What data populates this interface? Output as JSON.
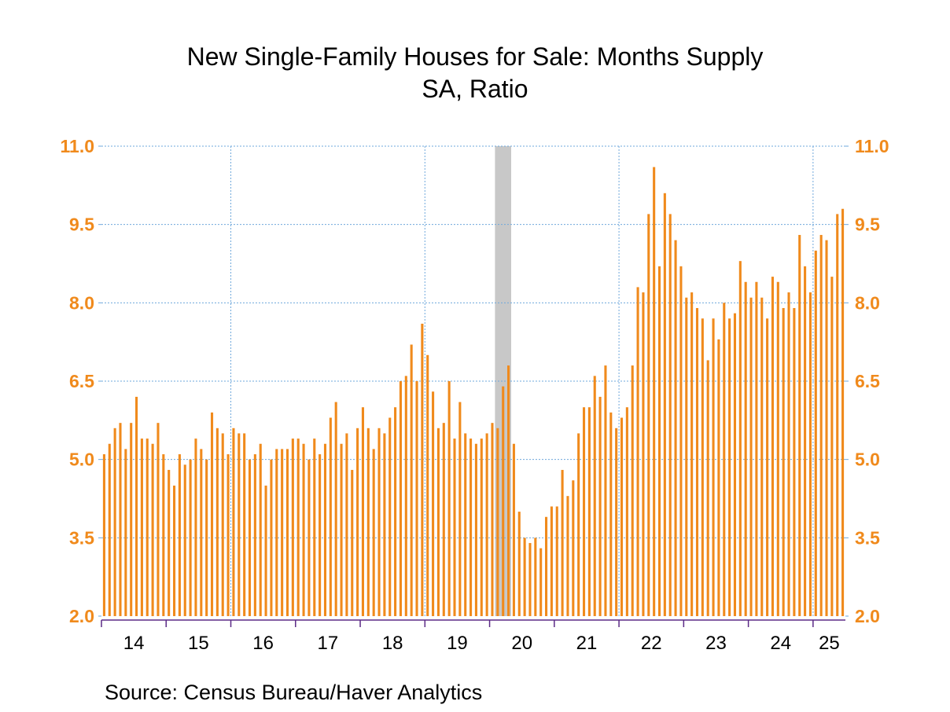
{
  "chart_data": {
    "type": "bar",
    "title": "New Single-Family Houses for Sale: Months Supply",
    "subtitle": "SA, Ratio",
    "source": "Source:  Census Bureau/Haver Analytics",
    "start": "2014-01",
    "values": [
      5.1,
      5.3,
      5.6,
      5.7,
      5.2,
      5.7,
      6.2,
      5.4,
      5.4,
      5.3,
      5.7,
      5.1,
      4.8,
      4.5,
      5.1,
      4.9,
      5.0,
      5.4,
      5.2,
      5.0,
      5.9,
      5.6,
      5.5,
      5.1,
      5.6,
      5.5,
      5.5,
      5.0,
      5.1,
      5.3,
      4.5,
      5.0,
      5.2,
      5.2,
      5.2,
      5.4,
      5.4,
      5.3,
      5.0,
      5.4,
      5.1,
      5.3,
      5.8,
      6.1,
      5.3,
      5.5,
      4.8,
      5.6,
      6.0,
      5.6,
      5.2,
      5.6,
      5.5,
      5.8,
      6.0,
      6.5,
      6.6,
      7.2,
      6.5,
      7.6,
      7.0,
      6.3,
      5.6,
      5.7,
      6.5,
      5.4,
      6.1,
      5.5,
      5.4,
      5.3,
      5.4,
      5.5,
      5.7,
      5.6,
      6.4,
      6.8,
      5.3,
      4.0,
      3.5,
      3.4,
      3.5,
      3.3,
      3.9,
      4.1,
      4.1,
      4.8,
      4.3,
      4.6,
      5.5,
      6.0,
      6.0,
      6.6,
      6.2,
      6.8,
      5.9,
      5.6,
      5.8,
      6.0,
      6.8,
      8.3,
      8.2,
      9.7,
      10.6,
      8.7,
      10.1,
      9.7,
      9.2,
      8.7,
      8.1,
      8.2,
      7.9,
      7.7,
      6.9,
      7.7,
      7.3,
      8.0,
      7.7,
      7.8,
      8.8,
      8.4,
      8.1,
      8.4,
      8.1,
      7.7,
      8.5,
      8.4,
      7.9,
      8.2,
      7.9,
      9.3,
      8.7,
      8.2,
      9.0,
      9.3,
      9.2,
      8.5,
      9.7,
      9.8
    ],
    "x_tick_labels": [
      "14",
      "15",
      "16",
      "17",
      "18",
      "19",
      "20",
      "21",
      "22",
      "23",
      "24",
      "25"
    ],
    "y_tick_labels": [
      "2.0",
      "3.5",
      "5.0",
      "6.5",
      "8.0",
      "9.5",
      "11.0"
    ],
    "ylim": [
      2.0,
      11.0
    ],
    "recession": {
      "start": "2020-02",
      "end": "2020-04"
    },
    "grid": true,
    "colors": {
      "bars": "#f08a1c",
      "grid": "#6fa8dc",
      "recession": "#c8c8c8",
      "tick_text": "#f08a1c"
    }
  }
}
